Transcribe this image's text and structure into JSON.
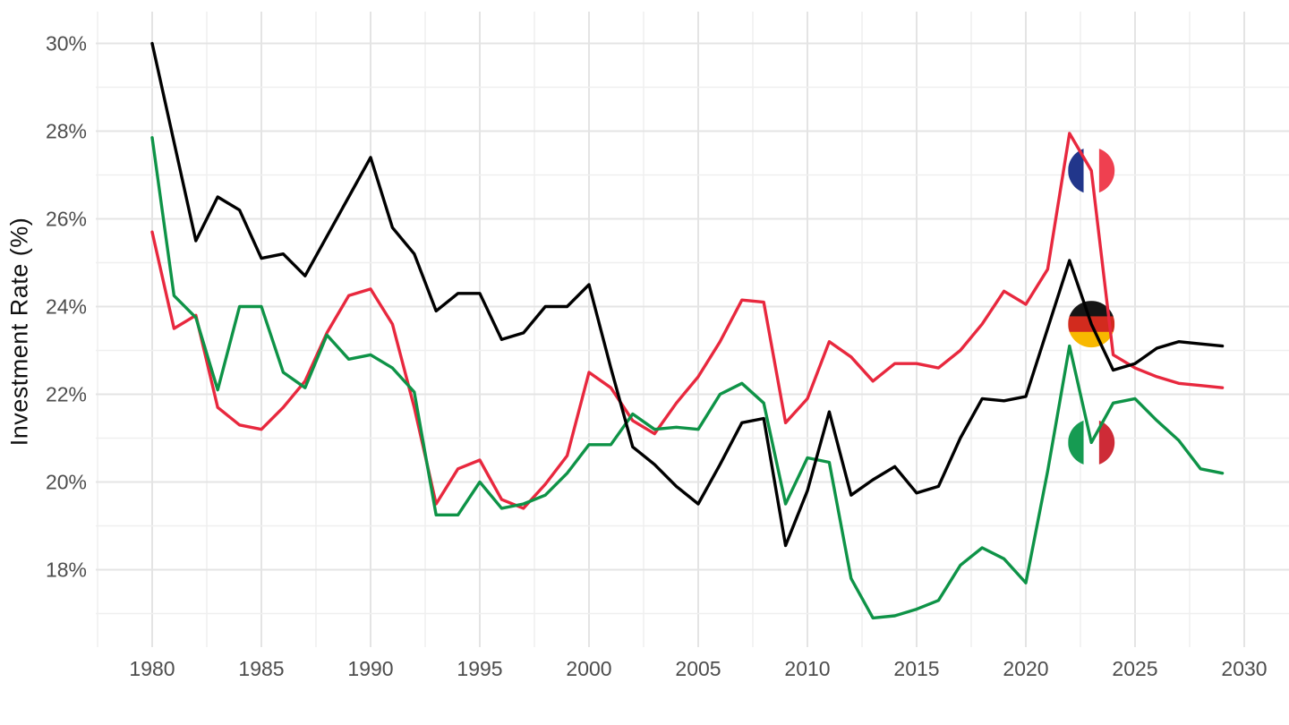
{
  "chart_data": {
    "type": "line",
    "title": "",
    "ylabel": "Investment Rate (%)",
    "xlabel": "",
    "x_tick_values": [
      1980,
      1985,
      1990,
      1995,
      2000,
      2005,
      2010,
      2015,
      2020,
      2025,
      2030
    ],
    "y_tick_values": [
      18,
      20,
      22,
      24,
      26,
      28,
      30
    ],
    "y_tick_suffix": "%",
    "xlim": [
      1977.4,
      2031.9
    ],
    "ylim": [
      16.2,
      30.7
    ],
    "grid": "on",
    "legend": "flag icons placed on each line at year 2023",
    "years": [
      1980,
      1981,
      1982,
      1983,
      1984,
      1985,
      1986,
      1987,
      1988,
      1989,
      1990,
      1991,
      1992,
      1993,
      1994,
      1995,
      1996,
      1997,
      1998,
      1999,
      2000,
      2001,
      2002,
      2003,
      2004,
      2005,
      2006,
      2007,
      2008,
      2009,
      2010,
      2011,
      2012,
      2013,
      2014,
      2015,
      2016,
      2017,
      2018,
      2019,
      2020,
      2021,
      2022,
      2023,
      2024,
      2025,
      2026,
      2027,
      2028,
      2029
    ],
    "series": [
      {
        "name": "France",
        "color": "#E8283E",
        "values": [
          25.7,
          23.5,
          23.8,
          21.7,
          21.3,
          21.2,
          21.7,
          22.3,
          23.4,
          24.25,
          24.4,
          23.6,
          21.7,
          19.5,
          20.3,
          20.5,
          19.6,
          19.4,
          19.95,
          20.6,
          22.5,
          22.15,
          21.4,
          21.1,
          21.8,
          22.4,
          23.2,
          24.15,
          24.1,
          21.35,
          21.9,
          23.2,
          22.85,
          22.3,
          22.7,
          22.7,
          22.6,
          23.0,
          23.6,
          24.35,
          24.05,
          24.85,
          27.95,
          27.1,
          22.9,
          22.6,
          22.4,
          22.25,
          22.2,
          22.15
        ]
      },
      {
        "name": "Italy",
        "color": "#0E9347",
        "values": [
          27.85,
          24.25,
          23.75,
          22.1,
          24.0,
          24.0,
          22.5,
          22.15,
          23.35,
          22.8,
          22.9,
          22.6,
          22.05,
          19.25,
          19.25,
          20.0,
          19.4,
          19.5,
          19.7,
          20.2,
          20.85,
          20.85,
          21.55,
          21.2,
          21.25,
          21.2,
          22.0,
          22.25,
          21.8,
          19.5,
          20.55,
          20.45,
          17.8,
          16.9,
          16.95,
          17.1,
          17.3,
          18.1,
          18.5,
          18.25,
          17.7,
          20.25,
          23.1,
          20.9,
          21.8,
          21.9,
          21.4,
          20.95,
          20.3,
          20.2
        ]
      },
      {
        "name": "Germany",
        "color": "#000000",
        "values": [
          30.0,
          27.75,
          25.5,
          26.5,
          26.2,
          25.1,
          25.2,
          24.7,
          25.6,
          26.5,
          27.4,
          25.8,
          25.2,
          23.9,
          24.3,
          24.3,
          23.25,
          23.4,
          24.0,
          24.0,
          24.5,
          22.6,
          20.8,
          20.4,
          19.9,
          19.5,
          20.4,
          21.35,
          21.45,
          18.55,
          19.8,
          21.6,
          19.7,
          20.05,
          20.35,
          19.75,
          19.9,
          21.0,
          21.9,
          21.85,
          21.95,
          23.5,
          25.05,
          23.6,
          22.55,
          22.7,
          23.05,
          23.2,
          23.15,
          23.1
        ]
      }
    ],
    "annotations": [
      {
        "name": "france-flag",
        "series": "France",
        "year": 2023,
        "value": 27.1,
        "orientation": "vertical",
        "colors": [
          "#21368B",
          "#FFFFFF",
          "#EF4050"
        ]
      },
      {
        "name": "germany-flag",
        "series": "Germany",
        "year": 2023,
        "value": 23.6,
        "orientation": "horizontal",
        "colors": [
          "#151515",
          "#D22B1E",
          "#F8B800"
        ]
      },
      {
        "name": "italy-flag",
        "series": "Italy",
        "year": 2023,
        "value": 20.9,
        "orientation": "vertical",
        "colors": [
          "#169B52",
          "#FFFFFF",
          "#CE2B37"
        ]
      }
    ],
    "colors": {
      "background": "#FFFFFF",
      "grid_major": "#E4E4E4",
      "grid_minor": "#EFEFEF",
      "tick_label": "#4D4D4D",
      "axis_title": "#111111"
    }
  }
}
